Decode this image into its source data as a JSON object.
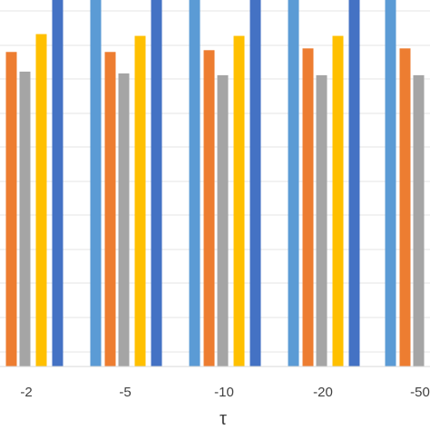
{
  "chart_data": {
    "type": "bar",
    "categories": [
      "-2",
      "-5",
      "-10",
      "-20",
      "-50"
    ],
    "xlabel": "τ",
    "ylabel": "",
    "grid": true,
    "legend": "none visible (cropped)",
    "series": [
      {
        "color": "#4472C4",
        "values": [
          100,
          100,
          100,
          100,
          null
        ],
        "clipped_at_top": true
      },
      {
        "color": "#5B9BD5",
        "values": [
          null,
          100,
          100,
          100,
          100
        ],
        "clipped_at_top": true
      },
      {
        "color": "#ED7D31",
        "values": [
          88,
          88,
          88.5,
          89,
          89
        ]
      },
      {
        "color": "#A5A5A5",
        "values": [
          82.5,
          82,
          81.5,
          81.5,
          81.5
        ]
      },
      {
        "color": "#FFC000",
        "values": [
          93,
          92.5,
          92.5,
          92.5,
          null
        ]
      }
    ],
    "ylim": [
      0,
      100
    ]
  }
}
